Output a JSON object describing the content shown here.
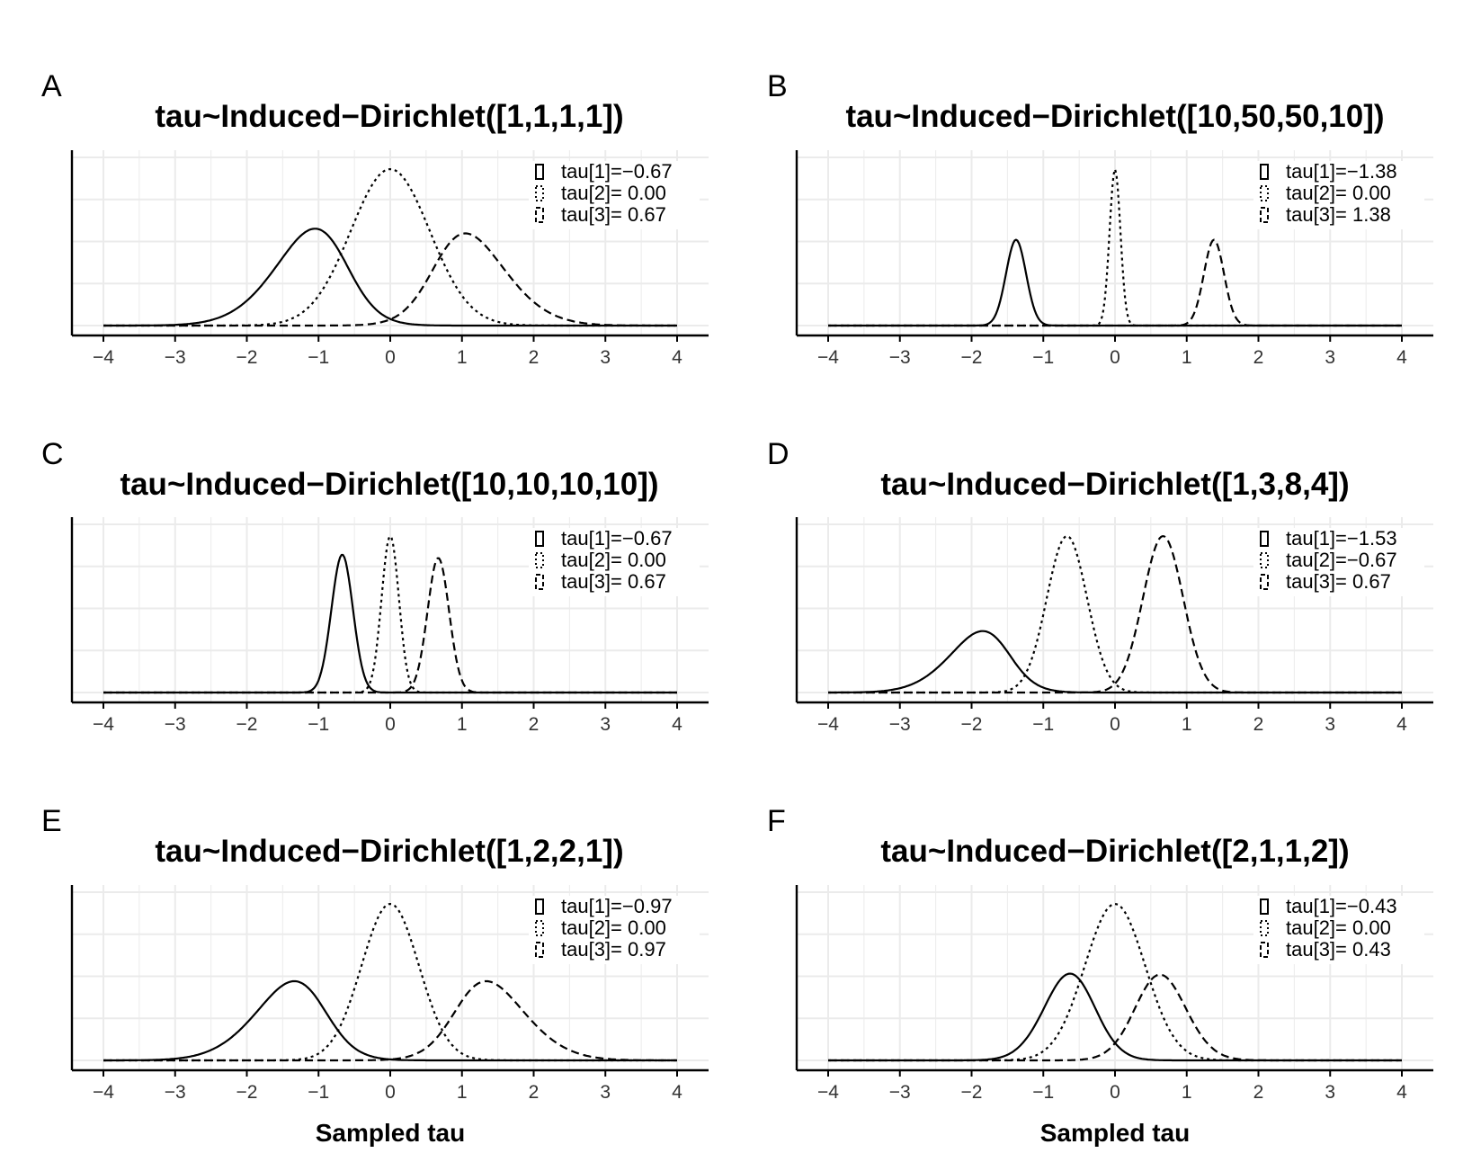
{
  "figure": {
    "xlabel": "Sampled tau"
  },
  "colors": {
    "background": "#ffffff",
    "grid": "#ebebeb",
    "ink": "#000000",
    "axis_tick_text": "#333333"
  },
  "chart_data": [
    {
      "type": "line",
      "panel_label": "A",
      "title": "tau~Induced−Dirichlet([1,1,1,1])",
      "xlabel": "",
      "ylabel": "",
      "xlim": [
        -4,
        4
      ],
      "ylim": [
        0,
        1
      ],
      "xticks": [
        "−4",
        "−3",
        "−2",
        "−1",
        "0",
        "1",
        "2",
        "3",
        "4"
      ],
      "grid": true,
      "legend_position": "top-right",
      "series": [
        {
          "name": "tau[1]=−0.67",
          "style": "solid",
          "location": -0.67,
          "scale": 0.72,
          "skew": -1.6,
          "height": 0.82
        },
        {
          "name": "tau[2]= 0.00",
          "style": "dotted",
          "location": 0.0,
          "scale": 0.55,
          "skew": 0,
          "height": 0.93
        },
        {
          "name": "tau[3]= 0.67",
          "style": "dashed",
          "location": 0.67,
          "scale": 0.72,
          "skew": 1.6,
          "height": 0.78
        }
      ]
    },
    {
      "type": "line",
      "panel_label": "B",
      "title": "tau~Induced−Dirichlet([10,50,50,10])",
      "xlabel": "",
      "ylabel": "",
      "xlim": [
        -4,
        4
      ],
      "ylim": [
        0,
        1
      ],
      "xticks": [
        "−4",
        "−3",
        "−2",
        "−1",
        "0",
        "1",
        "2",
        "3",
        "4"
      ],
      "grid": true,
      "legend_position": "top-right",
      "series": [
        {
          "name": "tau[1]=−1.38",
          "style": "solid",
          "location": -1.38,
          "scale": 0.14,
          "skew": 0,
          "height": 0.51
        },
        {
          "name": "tau[2]= 0.00",
          "style": "dotted",
          "location": 0.0,
          "scale": 0.075,
          "skew": 0,
          "height": 0.93
        },
        {
          "name": "tau[3]= 1.38",
          "style": "dashed",
          "location": 1.38,
          "scale": 0.14,
          "skew": 0,
          "height": 0.51
        }
      ]
    },
    {
      "type": "line",
      "panel_label": "C",
      "title": "tau~Induced−Dirichlet([10,10,10,10])",
      "xlabel": "",
      "ylabel": "",
      "xlim": [
        -4,
        4
      ],
      "ylim": [
        0,
        1
      ],
      "xticks": [
        "−4",
        "−3",
        "−2",
        "−1",
        "0",
        "1",
        "2",
        "3",
        "4"
      ],
      "grid": true,
      "legend_position": "top-right",
      "series": [
        {
          "name": "tau[1]=−0.67",
          "style": "solid",
          "location": -0.67,
          "scale": 0.15,
          "skew": 0,
          "height": 0.82
        },
        {
          "name": "tau[2]= 0.00",
          "style": "dotted",
          "location": 0.0,
          "scale": 0.12,
          "skew": 0,
          "height": 0.93
        },
        {
          "name": "tau[3]= 0.67",
          "style": "dashed",
          "location": 0.67,
          "scale": 0.15,
          "skew": 0,
          "height": 0.8
        }
      ]
    },
    {
      "type": "line",
      "panel_label": "D",
      "title": "tau~Induced−Dirichlet([1,3,8,4])",
      "xlabel": "",
      "ylabel": "",
      "xlim": [
        -4,
        4
      ],
      "ylim": [
        0,
        1
      ],
      "xticks": [
        "−4",
        "−3",
        "−2",
        "−1",
        "0",
        "1",
        "2",
        "3",
        "4"
      ],
      "grid": true,
      "legend_position": "top-right",
      "series": [
        {
          "name": "tau[1]=−1.53",
          "style": "solid",
          "location": -1.53,
          "scale": 0.6,
          "skew": -1.6,
          "height": 0.52
        },
        {
          "name": "tau[2]=−0.67",
          "style": "dotted",
          "location": -0.67,
          "scale": 0.28,
          "skew": 0,
          "height": 0.93
        },
        {
          "name": "tau[3]= 0.67",
          "style": "dashed",
          "location": 0.67,
          "scale": 0.28,
          "skew": 0,
          "height": 0.93
        }
      ]
    },
    {
      "type": "line",
      "panel_label": "E",
      "title": "tau~Induced−Dirichlet([1,2,2,1])",
      "xlabel": "Sampled tau",
      "ylabel": "",
      "xlim": [
        -4,
        4
      ],
      "ylim": [
        0,
        1
      ],
      "xticks": [
        "−4",
        "−3",
        "−2",
        "−1",
        "0",
        "1",
        "2",
        "3",
        "4"
      ],
      "grid": true,
      "legend_position": "top-right",
      "series": [
        {
          "name": "tau[1]=−0.97",
          "style": "solid",
          "location": -0.97,
          "scale": 0.7,
          "skew": -1.6,
          "height": 0.67
        },
        {
          "name": "tau[2]= 0.00",
          "style": "dotted",
          "location": 0.0,
          "scale": 0.4,
          "skew": 0,
          "height": 0.93
        },
        {
          "name": "tau[3]= 0.97",
          "style": "dashed",
          "location": 0.97,
          "scale": 0.7,
          "skew": 1.6,
          "height": 0.67
        }
      ]
    },
    {
      "type": "line",
      "panel_label": "F",
      "title": "tau~Induced−Dirichlet([2,1,1,2])",
      "xlabel": "Sampled tau",
      "ylabel": "",
      "xlim": [
        -4,
        4
      ],
      "ylim": [
        0,
        1
      ],
      "xticks": [
        "−4",
        "−3",
        "−2",
        "−1",
        "0",
        "1",
        "2",
        "3",
        "4"
      ],
      "grid": true,
      "legend_position": "top-right",
      "series": [
        {
          "name": "tau[1]=−0.43",
          "style": "solid",
          "location": -0.43,
          "scale": 0.42,
          "skew": -0.8,
          "height": 0.88
        },
        {
          "name": "tau[2]= 0.00",
          "style": "dotted",
          "location": 0.0,
          "scale": 0.42,
          "skew": 0,
          "height": 0.93
        },
        {
          "name": "tau[3]= 0.43",
          "style": "dashed",
          "location": 0.43,
          "scale": 0.42,
          "skew": 0.8,
          "height": 0.87
        }
      ]
    }
  ]
}
